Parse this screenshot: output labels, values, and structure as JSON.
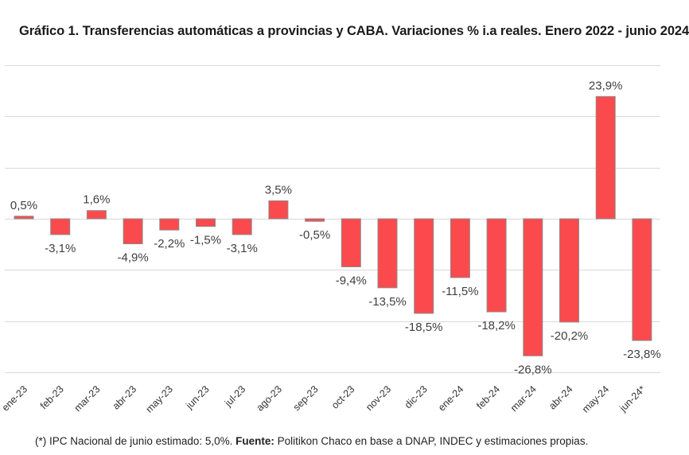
{
  "chart_data": {
    "type": "bar",
    "title": "Gráfico 1. Transferencias automáticas a provincias y CABA. Variaciones % i.a reales. Enero 2022 - junio 2024",
    "xlabel": "",
    "ylabel": "",
    "ylim": [
      -30,
      30
    ],
    "grid": true,
    "categories": [
      "ene-23",
      "feb-23",
      "mar-23",
      "abr-23",
      "may-23",
      "jun-23",
      "jul-23",
      "ago-23",
      "sep-23",
      "oct-23",
      "nov-23",
      "dic-23",
      "ene-24",
      "feb-24",
      "mar-24",
      "abr-24",
      "may-24",
      "jun-24*"
    ],
    "values": [
      0.5,
      -3.1,
      1.6,
      -4.9,
      -2.2,
      -1.5,
      -3.1,
      3.5,
      -0.5,
      -9.4,
      -13.5,
      -18.5,
      -11.5,
      -18.2,
      -26.8,
      -20.2,
      23.9,
      -23.8
    ],
    "data_labels": [
      "0,5%",
      "-3,1%",
      "1,6%",
      "-4,9%",
      "-2,2%",
      "-1,5%",
      "-3,1%",
      "3,5%",
      "-0,5%",
      "-9,4%",
      "-13,5%",
      "-18,5%",
      "-11,5%",
      "-18,2%",
      "-26,8%",
      "-20,2%",
      "23,9%",
      "-23,8%"
    ],
    "colors": {
      "bar": "#fb4a4d",
      "bar_edge": "#8c8c8c",
      "grid": "#d9d9d9",
      "label": "#404040"
    }
  },
  "footnote": {
    "prefix": "(*) IPC Nacional de junio estimado: 5,0%. ",
    "source_label": "Fuente:",
    "source_text": " Politikon Chaco en base a DNAP, INDEC y estimaciones propias."
  }
}
